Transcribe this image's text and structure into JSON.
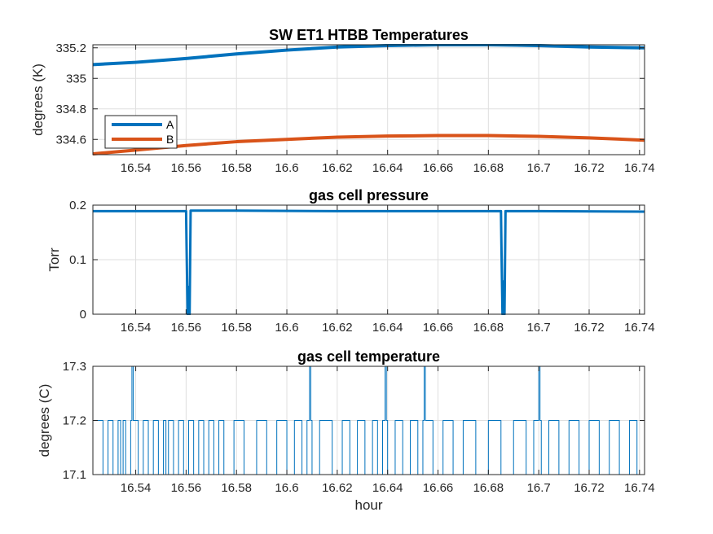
{
  "chart_data": [
    {
      "type": "line",
      "title": "SW ET1 HTBB Temperatures",
      "xlabel": "",
      "ylabel": "degrees (K)",
      "xlim": [
        16.523,
        16.742
      ],
      "ylim": [
        334.5,
        335.22
      ],
      "x_ticks": [
        "16.54",
        "16.56",
        "16.58",
        "16.6",
        "16.62",
        "16.64",
        "16.66",
        "16.68",
        "16.7",
        "16.72",
        "16.74"
      ],
      "y_ticks": [
        "334.6",
        "334.8",
        "335",
        "335.2"
      ],
      "grid": true,
      "legend": {
        "position": "bottom-left",
        "entries": [
          "A",
          "B"
        ]
      },
      "series": [
        {
          "name": "A",
          "color": "#0072BD",
          "x": [
            16.523,
            16.54,
            16.56,
            16.58,
            16.6,
            16.62,
            16.64,
            16.66,
            16.68,
            16.7,
            16.72,
            16.742
          ],
          "y": [
            335.09,
            335.105,
            335.13,
            335.16,
            335.185,
            335.205,
            335.215,
            335.22,
            335.22,
            335.215,
            335.205,
            335.2
          ]
        },
        {
          "name": "B",
          "color": "#D95319",
          "x": [
            16.523,
            16.54,
            16.56,
            16.58,
            16.6,
            16.62,
            16.64,
            16.66,
            16.68,
            16.7,
            16.72,
            16.742
          ],
          "y": [
            334.505,
            334.53,
            334.56,
            334.585,
            334.6,
            334.615,
            334.622,
            334.625,
            334.625,
            334.62,
            334.61,
            334.595
          ]
        }
      ]
    },
    {
      "type": "line",
      "title": "gas cell pressure",
      "xlabel": "",
      "ylabel": "Torr",
      "xlim": [
        16.523,
        16.742
      ],
      "ylim": [
        0,
        0.2
      ],
      "x_ticks": [
        "16.54",
        "16.56",
        "16.58",
        "16.6",
        "16.62",
        "16.64",
        "16.66",
        "16.68",
        "16.7",
        "16.72",
        "16.74"
      ],
      "y_ticks": [
        "0",
        "0.1",
        "0.2"
      ],
      "grid": true,
      "series": [
        {
          "color": "#0072BD",
          "x": [
            16.523,
            16.56,
            16.5602,
            16.5606,
            16.561,
            16.5614,
            16.5618,
            16.58,
            16.62,
            16.66,
            16.685,
            16.6852,
            16.6856,
            16.686,
            16.6864,
            16.6868,
            16.7,
            16.742
          ],
          "y": [
            0.189,
            0.189,
            0.12,
            0.0,
            0.05,
            0.0,
            0.19,
            0.19,
            0.189,
            0.189,
            0.189,
            0.12,
            0.0,
            0.06,
            0.0,
            0.189,
            0.189,
            0.188
          ]
        }
      ]
    },
    {
      "type": "line",
      "title": "gas cell temperature",
      "xlabel": "hour",
      "ylabel": "degrees (C)",
      "xlim": [
        16.523,
        16.742
      ],
      "ylim": [
        17.1,
        17.3
      ],
      "x_ticks": [
        "16.54",
        "16.56",
        "16.58",
        "16.6",
        "16.62",
        "16.64",
        "16.66",
        "16.68",
        "16.7",
        "16.72",
        "16.74"
      ],
      "y_ticks": [
        "17.1",
        "17.2",
        "17.3"
      ],
      "grid": true,
      "series": [
        {
          "color": "#0072BD",
          "x": [
            16.523,
            16.527,
            16.529,
            16.531,
            16.533,
            16.534,
            16.535,
            16.536,
            16.538,
            16.5385,
            16.539,
            16.541,
            16.543,
            16.545,
            16.547,
            16.549,
            16.551,
            16.552,
            16.553,
            16.555,
            16.557,
            16.559,
            16.561,
            16.563,
            16.565,
            16.567,
            16.569,
            16.571,
            16.573,
            16.575,
            16.579,
            16.583,
            16.588,
            16.592,
            16.596,
            16.6,
            16.603,
            16.606,
            16.608,
            16.609,
            16.6095,
            16.61,
            16.613,
            16.618,
            16.622,
            16.625,
            16.628,
            16.631,
            16.634,
            16.636,
            16.638,
            16.639,
            16.6395,
            16.64,
            16.643,
            16.646,
            16.649,
            16.652,
            16.654,
            16.6545,
            16.655,
            16.658,
            16.662,
            16.666,
            16.67,
            16.675,
            16.68,
            16.685,
            16.69,
            16.695,
            16.698,
            16.7,
            16.7005,
            16.701,
            16.704,
            16.708,
            16.712,
            16.716,
            16.72,
            16.724,
            16.728,
            16.732,
            16.736,
            16.739,
            16.742
          ],
          "y": [
            17.2,
            17.1,
            17.2,
            17.1,
            17.2,
            17.1,
            17.2,
            17.1,
            17.2,
            17.3,
            17.2,
            17.1,
            17.2,
            17.1,
            17.2,
            17.1,
            17.2,
            17.1,
            17.2,
            17.1,
            17.2,
            17.1,
            17.2,
            17.1,
            17.2,
            17.1,
            17.2,
            17.1,
            17.2,
            17.1,
            17.2,
            17.1,
            17.2,
            17.1,
            17.2,
            17.1,
            17.2,
            17.1,
            17.2,
            17.3,
            17.2,
            17.1,
            17.2,
            17.1,
            17.2,
            17.1,
            17.2,
            17.1,
            17.2,
            17.1,
            17.2,
            17.3,
            17.2,
            17.1,
            17.2,
            17.1,
            17.2,
            17.1,
            17.2,
            17.3,
            17.2,
            17.1,
            17.2,
            17.1,
            17.2,
            17.1,
            17.2,
            17.1,
            17.2,
            17.1,
            17.2,
            17.3,
            17.2,
            17.1,
            17.2,
            17.1,
            17.2,
            17.1,
            17.2,
            17.1,
            17.2,
            17.1,
            17.2,
            17.1,
            17.2
          ]
        }
      ]
    }
  ]
}
